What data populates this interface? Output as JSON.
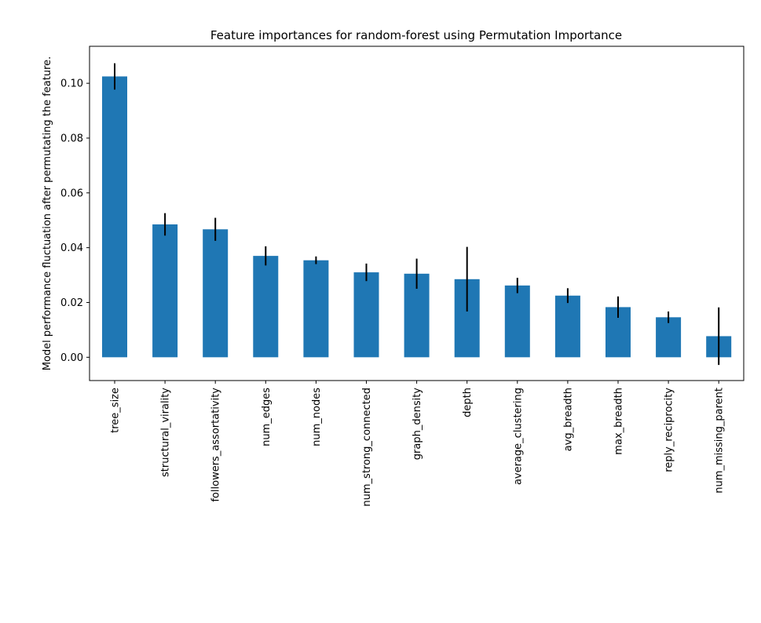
{
  "chart_data": {
    "type": "bar",
    "title": "Feature importances for random-forest using Permutation Importance",
    "xlabel": "",
    "ylabel": "Model performance fluctuation after permutating the feature.",
    "ylim": [
      -0.0085,
      0.1135
    ],
    "yticks": [
      0.0,
      0.02,
      0.04,
      0.06,
      0.08,
      0.1
    ],
    "ytick_labels": [
      "0.00",
      "0.02",
      "0.04",
      "0.06",
      "0.08",
      "0.10"
    ],
    "grid": false,
    "legend": false,
    "bar_color": "#1f77b4",
    "error_color": "#000000",
    "categories": [
      "tree_size",
      "structural_virality",
      "followers_assortativity",
      "num_edges",
      "num_nodes",
      "num_strong_connected",
      "graph_density",
      "depth",
      "average_clustering",
      "avg_breadth",
      "max_breadth",
      "reply_reciprocity",
      "num_missing_parent"
    ],
    "values": [
      0.1025,
      0.0485,
      0.0467,
      0.037,
      0.0354,
      0.031,
      0.0305,
      0.0285,
      0.0262,
      0.0225,
      0.0183,
      0.0146,
      0.0077
    ],
    "errors": [
      0.0048,
      0.0041,
      0.0042,
      0.0035,
      0.0014,
      0.0032,
      0.0055,
      0.0118,
      0.0028,
      0.0027,
      0.0039,
      0.0021,
      0.0105
    ]
  }
}
